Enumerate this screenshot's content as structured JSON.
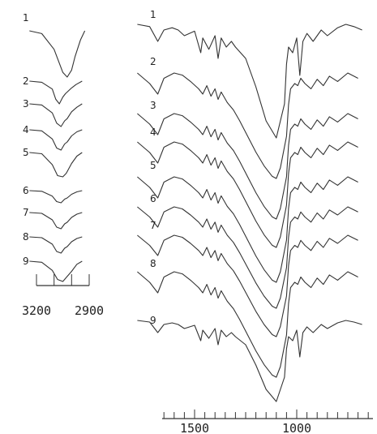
{
  "chart_data": [
    {
      "type": "line",
      "panel": "left",
      "title": "",
      "xlabel": "",
      "ylabel": "",
      "x_direction": "reversed",
      "xlim": [
        3300,
        2800
      ],
      "major_ticks": [
        3200,
        3100,
        3000,
        2900
      ],
      "tick_labels": [
        "3200",
        "2900"
      ],
      "grid": false,
      "series": [
        {
          "label": "1",
          "x": [
            3240,
            3170,
            3100,
            3050,
            3025,
            3000,
            2980,
            2950,
            2925
          ],
          "y": [
            0.0,
            0.06,
            0.4,
            0.9,
            1.0,
            0.85,
            0.55,
            0.2,
            0.0
          ]
        },
        {
          "label": "2",
          "x": [
            3240,
            3170,
            3110,
            3090,
            3070,
            3050,
            3035,
            3000,
            2975,
            2940
          ],
          "y": [
            0.0,
            0.05,
            0.35,
            0.8,
            1.0,
            0.7,
            0.55,
            0.3,
            0.15,
            0.0
          ]
        },
        {
          "label": "3",
          "x": [
            3240,
            3170,
            3110,
            3085,
            3060,
            3040,
            3025,
            3000,
            2970,
            2940
          ],
          "y": [
            0.0,
            0.05,
            0.4,
            0.85,
            1.0,
            0.75,
            0.65,
            0.35,
            0.15,
            0.0
          ]
        },
        {
          "label": "4",
          "x": [
            3240,
            3170,
            3110,
            3085,
            3060,
            3040,
            3025,
            3000,
            2970,
            2940
          ],
          "y": [
            0.0,
            0.05,
            0.45,
            0.9,
            1.0,
            0.7,
            0.6,
            0.3,
            0.1,
            0.0
          ]
        },
        {
          "label": "5",
          "x": [
            3240,
            3170,
            3110,
            3080,
            3050,
            3030,
            3000,
            2970,
            2940
          ],
          "y": [
            0.0,
            0.05,
            0.5,
            0.95,
            1.0,
            0.85,
            0.45,
            0.15,
            0.0
          ]
        },
        {
          "label": "6",
          "x": [
            3240,
            3170,
            3110,
            3085,
            3060,
            3040,
            3025,
            3000,
            2970,
            2940
          ],
          "y": [
            0.0,
            0.05,
            0.45,
            0.9,
            1.0,
            0.7,
            0.6,
            0.3,
            0.1,
            0.0
          ]
        },
        {
          "label": "7",
          "x": [
            3240,
            3170,
            3110,
            3085,
            3060,
            3040,
            3025,
            3000,
            2970,
            2940
          ],
          "y": [
            0.0,
            0.05,
            0.45,
            0.9,
            1.0,
            0.7,
            0.6,
            0.3,
            0.1,
            0.0
          ]
        },
        {
          "label": "8",
          "x": [
            3240,
            3170,
            3110,
            3085,
            3060,
            3040,
            3025,
            3000,
            2970,
            2940
          ],
          "y": [
            0.0,
            0.05,
            0.45,
            0.9,
            1.0,
            0.7,
            0.6,
            0.3,
            0.1,
            0.0
          ]
        },
        {
          "label": "9",
          "x": [
            3240,
            3170,
            3110,
            3080,
            3050,
            3030,
            3000,
            2970,
            2940
          ],
          "y": [
            0.0,
            0.05,
            0.45,
            0.9,
            1.0,
            0.8,
            0.5,
            0.15,
            0.0
          ]
        }
      ]
    },
    {
      "type": "line",
      "panel": "right",
      "title": "",
      "xlabel": "",
      "ylabel": "",
      "x_direction": "reversed",
      "xlim": [
        1800,
        650
      ],
      "major_ticks": [
        1500,
        1000
      ],
      "tick_labels": [
        "1500",
        "1000"
      ],
      "minor_tick_step": 50,
      "grid": false,
      "series": [
        {
          "label": "1",
          "x": [
            1780,
            1720,
            1680,
            1650,
            1610,
            1580,
            1550,
            1500,
            1470,
            1460,
            1430,
            1400,
            1385,
            1370,
            1345,
            1320,
            1300,
            1250,
            1200,
            1150,
            1100,
            1060,
            1050,
            1040,
            1020,
            1000,
            985,
            970,
            950,
            920,
            880,
            850,
            800,
            760,
            720,
            680
          ],
          "y": [
            0.0,
            0.02,
            0.15,
            0.05,
            0.03,
            0.05,
            0.1,
            0.06,
            0.25,
            0.12,
            0.22,
            0.1,
            0.3,
            0.12,
            0.2,
            0.15,
            0.2,
            0.3,
            0.55,
            0.85,
            1.0,
            0.7,
            0.35,
            0.2,
            0.25,
            0.12,
            0.45,
            0.15,
            0.08,
            0.15,
            0.05,
            0.1,
            0.03,
            0.0,
            0.02,
            0.05
          ]
        },
        {
          "label": "2",
          "x": [
            1780,
            1720,
            1680,
            1650,
            1600,
            1560,
            1520,
            1480,
            1460,
            1440,
            1420,
            1400,
            1385,
            1370,
            1340,
            1310,
            1280,
            1240,
            1200,
            1160,
            1120,
            1100,
            1080,
            1050,
            1040,
            1030,
            1010,
            995,
            980,
            960,
            930,
            900,
            870,
            840,
            800,
            750,
            700
          ],
          "y": [
            0.0,
            0.1,
            0.2,
            0.05,
            0.0,
            0.02,
            0.08,
            0.15,
            0.2,
            0.12,
            0.22,
            0.15,
            0.25,
            0.18,
            0.28,
            0.35,
            0.45,
            0.6,
            0.75,
            0.88,
            0.98,
            1.0,
            0.9,
            0.6,
            0.3,
            0.15,
            0.1,
            0.12,
            0.05,
            0.1,
            0.15,
            0.06,
            0.12,
            0.03,
            0.08,
            0.0,
            0.05
          ]
        },
        {
          "label": "3",
          "x": [
            1780,
            1720,
            1680,
            1650,
            1600,
            1560,
            1520,
            1480,
            1460,
            1440,
            1420,
            1400,
            1385,
            1370,
            1340,
            1310,
            1280,
            1240,
            1200,
            1160,
            1120,
            1100,
            1080,
            1050,
            1040,
            1030,
            1010,
            995,
            980,
            960,
            930,
            900,
            870,
            840,
            800,
            750,
            700
          ],
          "y": [
            0.0,
            0.1,
            0.2,
            0.05,
            0.0,
            0.02,
            0.08,
            0.15,
            0.2,
            0.12,
            0.22,
            0.15,
            0.25,
            0.18,
            0.28,
            0.35,
            0.45,
            0.6,
            0.75,
            0.88,
            0.98,
            1.0,
            0.9,
            0.6,
            0.3,
            0.15,
            0.1,
            0.12,
            0.05,
            0.1,
            0.15,
            0.06,
            0.12,
            0.03,
            0.08,
            0.0,
            0.05
          ]
        },
        {
          "label": "4",
          "x": [
            1780,
            1720,
            1680,
            1650,
            1600,
            1560,
            1520,
            1480,
            1460,
            1440,
            1420,
            1400,
            1385,
            1370,
            1340,
            1310,
            1280,
            1240,
            1200,
            1160,
            1120,
            1100,
            1080,
            1050,
            1040,
            1030,
            1010,
            995,
            980,
            960,
            930,
            900,
            870,
            840,
            800,
            750,
            700
          ],
          "y": [
            0.0,
            0.1,
            0.2,
            0.05,
            0.0,
            0.02,
            0.08,
            0.15,
            0.2,
            0.12,
            0.22,
            0.15,
            0.25,
            0.18,
            0.28,
            0.35,
            0.45,
            0.6,
            0.75,
            0.88,
            0.98,
            1.0,
            0.9,
            0.6,
            0.3,
            0.15,
            0.1,
            0.12,
            0.05,
            0.1,
            0.15,
            0.06,
            0.12,
            0.03,
            0.08,
            0.0,
            0.05
          ]
        },
        {
          "label": "5",
          "x": [
            1780,
            1720,
            1680,
            1650,
            1600,
            1560,
            1520,
            1480,
            1460,
            1440,
            1420,
            1400,
            1385,
            1370,
            1340,
            1310,
            1280,
            1240,
            1200,
            1160,
            1120,
            1100,
            1080,
            1050,
            1040,
            1030,
            1010,
            995,
            980,
            960,
            930,
            900,
            870,
            840,
            800,
            750,
            700
          ],
          "y": [
            0.0,
            0.1,
            0.2,
            0.05,
            0.0,
            0.02,
            0.08,
            0.15,
            0.2,
            0.12,
            0.22,
            0.15,
            0.25,
            0.18,
            0.28,
            0.35,
            0.45,
            0.6,
            0.75,
            0.88,
            0.98,
            1.0,
            0.9,
            0.6,
            0.3,
            0.15,
            0.1,
            0.12,
            0.05,
            0.1,
            0.15,
            0.06,
            0.12,
            0.03,
            0.08,
            0.0,
            0.05
          ]
        },
        {
          "label": "6",
          "x": [
            1780,
            1720,
            1680,
            1650,
            1600,
            1560,
            1520,
            1480,
            1460,
            1440,
            1420,
            1400,
            1385,
            1370,
            1340,
            1310,
            1280,
            1240,
            1200,
            1160,
            1120,
            1100,
            1080,
            1050,
            1040,
            1030,
            1010,
            995,
            980,
            960,
            930,
            900,
            870,
            840,
            800,
            750,
            700
          ],
          "y": [
            0.0,
            0.1,
            0.2,
            0.05,
            0.0,
            0.02,
            0.08,
            0.15,
            0.2,
            0.12,
            0.22,
            0.15,
            0.25,
            0.18,
            0.28,
            0.35,
            0.45,
            0.6,
            0.75,
            0.88,
            0.98,
            1.0,
            0.9,
            0.6,
            0.3,
            0.15,
            0.1,
            0.12,
            0.05,
            0.1,
            0.15,
            0.06,
            0.12,
            0.03,
            0.08,
            0.0,
            0.05
          ]
        },
        {
          "label": "7",
          "x": [
            1780,
            1720,
            1680,
            1650,
            1600,
            1560,
            1520,
            1480,
            1460,
            1440,
            1420,
            1400,
            1385,
            1370,
            1340,
            1310,
            1280,
            1240,
            1200,
            1160,
            1120,
            1100,
            1080,
            1050,
            1040,
            1030,
            1010,
            995,
            980,
            960,
            930,
            900,
            870,
            840,
            800,
            750,
            700
          ],
          "y": [
            0.0,
            0.1,
            0.2,
            0.05,
            0.0,
            0.02,
            0.08,
            0.15,
            0.2,
            0.12,
            0.22,
            0.15,
            0.25,
            0.18,
            0.28,
            0.35,
            0.45,
            0.6,
            0.75,
            0.88,
            0.98,
            1.0,
            0.9,
            0.6,
            0.3,
            0.15,
            0.1,
            0.12,
            0.05,
            0.1,
            0.15,
            0.06,
            0.12,
            0.03,
            0.08,
            0.0,
            0.05
          ]
        },
        {
          "label": "8",
          "x": [
            1780,
            1720,
            1680,
            1650,
            1600,
            1560,
            1520,
            1480,
            1460,
            1440,
            1420,
            1400,
            1385,
            1370,
            1340,
            1310,
            1280,
            1240,
            1200,
            1160,
            1120,
            1100,
            1080,
            1050,
            1040,
            1030,
            1010,
            995,
            980,
            960,
            930,
            900,
            870,
            840,
            800,
            750,
            700
          ],
          "y": [
            0.0,
            0.1,
            0.2,
            0.05,
            0.0,
            0.02,
            0.08,
            0.15,
            0.2,
            0.12,
            0.22,
            0.15,
            0.25,
            0.18,
            0.28,
            0.35,
            0.45,
            0.6,
            0.75,
            0.88,
            0.98,
            1.0,
            0.9,
            0.6,
            0.3,
            0.15,
            0.1,
            0.12,
            0.05,
            0.1,
            0.15,
            0.06,
            0.12,
            0.03,
            0.08,
            0.0,
            0.05
          ]
        },
        {
          "label": "9",
          "x": [
            1780,
            1720,
            1680,
            1650,
            1610,
            1580,
            1550,
            1500,
            1470,
            1460,
            1430,
            1400,
            1385,
            1370,
            1345,
            1320,
            1300,
            1250,
            1200,
            1150,
            1100,
            1060,
            1050,
            1040,
            1020,
            1000,
            985,
            970,
            950,
            920,
            880,
            850,
            800,
            760,
            720,
            680
          ],
          "y": [
            0.0,
            0.02,
            0.15,
            0.05,
            0.03,
            0.05,
            0.1,
            0.06,
            0.25,
            0.12,
            0.22,
            0.1,
            0.3,
            0.12,
            0.2,
            0.15,
            0.2,
            0.3,
            0.55,
            0.85,
            1.0,
            0.7,
            0.35,
            0.2,
            0.25,
            0.12,
            0.45,
            0.15,
            0.08,
            0.15,
            0.05,
            0.1,
            0.03,
            0.0,
            0.02,
            0.05
          ]
        }
      ]
    }
  ]
}
